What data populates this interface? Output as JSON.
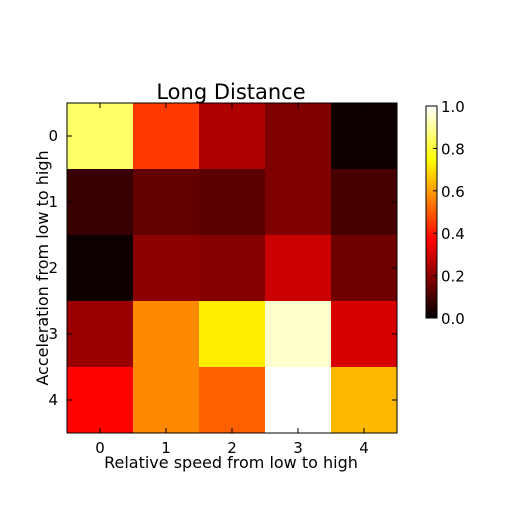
{
  "chart_data": {
    "type": "heatmap",
    "title": "Long Distance",
    "xlabel": "Relative speed from low to high",
    "ylabel": "Acceleration from low to high",
    "x_categories": [
      "0",
      "1",
      "2",
      "3",
      "4"
    ],
    "y_categories": [
      "0",
      "1",
      "2",
      "3",
      "4"
    ],
    "values": [
      [
        0.85,
        0.45,
        0.25,
        0.18,
        0.02
      ],
      [
        0.08,
        0.14,
        0.13,
        0.18,
        0.1
      ],
      [
        0.02,
        0.2,
        0.19,
        0.29,
        0.16
      ],
      [
        0.22,
        0.57,
        0.72,
        0.95,
        0.31
      ],
      [
        0.37,
        0.57,
        0.51,
        1.0,
        0.64
      ]
    ],
    "colormap": "hot",
    "colorbar": {
      "range": [
        0.0,
        1.0
      ],
      "ticks": [
        0.0,
        0.2,
        0.4,
        0.6,
        0.8,
        1.0
      ],
      "tick_labels": [
        "0.0",
        "0.2",
        "0.4",
        "0.6",
        "0.8",
        "1.0"
      ]
    },
    "grid": false,
    "legend": "colorbar-right"
  }
}
